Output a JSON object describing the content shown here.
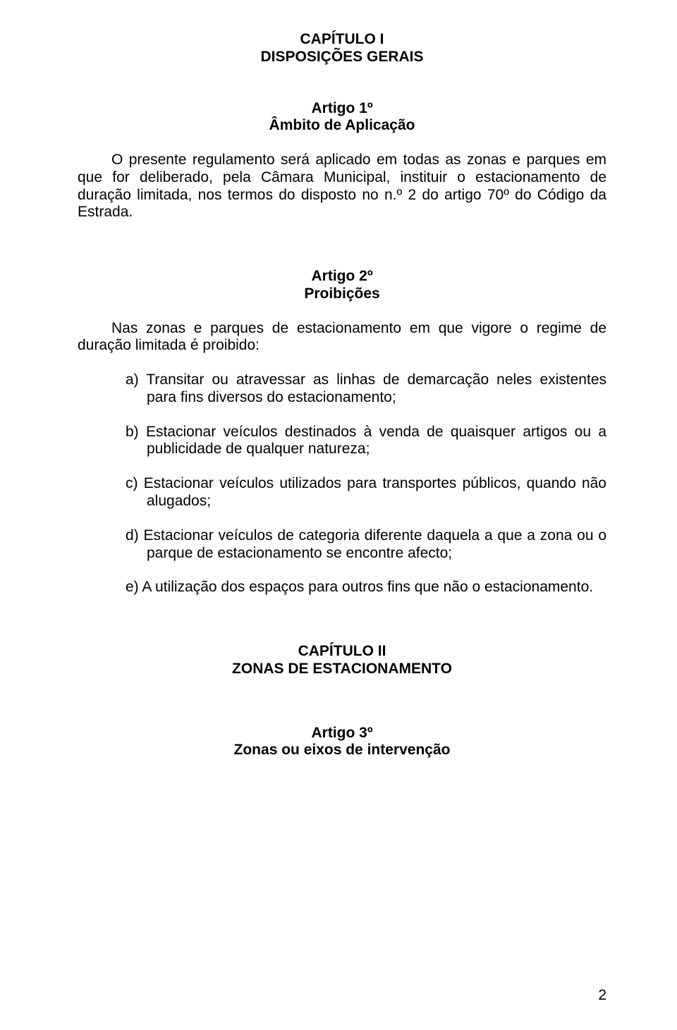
{
  "meta": {
    "text_color": "#000000",
    "background_color": "#ffffff",
    "font_family": "Trebuchet MS",
    "base_font_size_pt": 16
  },
  "chapter1": {
    "num": "CAPÍTULO I",
    "title": "DISPOSIÇÕES GERAIS"
  },
  "article1": {
    "num": "Artigo 1º",
    "title": "Âmbito de Aplicação",
    "para": "O presente regulamento será aplicado em todas as zonas e parques em que for deliberado, pela Câmara Municipal, instituir o estacionamento de duração limitada, nos termos do disposto no n.º 2 do artigo 70º do Código da Estrada."
  },
  "article2": {
    "num": "Artigo 2º",
    "title": "Proibições",
    "intro": "Nas zonas e parques de estacionamento em que vigore o regime de duração limitada é proibido:",
    "items": [
      "a) Transitar ou atravessar as linhas de demarcação neles existentes para fins diversos do estacionamento;",
      "b) Estacionar veículos destinados à venda de quaisquer artigos ou a publicidade de qualquer natureza;",
      "c) Estacionar veículos utilizados para transportes públicos, quando não alugados;",
      "d) Estacionar veículos de categoria diferente daquela a que a zona ou o parque de estacionamento se encontre afecto;",
      "e) A utilização dos espaços para outros fins que não o estacionamento."
    ]
  },
  "chapter2": {
    "num": "CAPÍTULO II",
    "title": "ZONAS DE ESTACIONAMENTO"
  },
  "article3": {
    "num": "Artigo 3º",
    "title": "Zonas ou eixos de intervenção"
  },
  "page_number": "2"
}
